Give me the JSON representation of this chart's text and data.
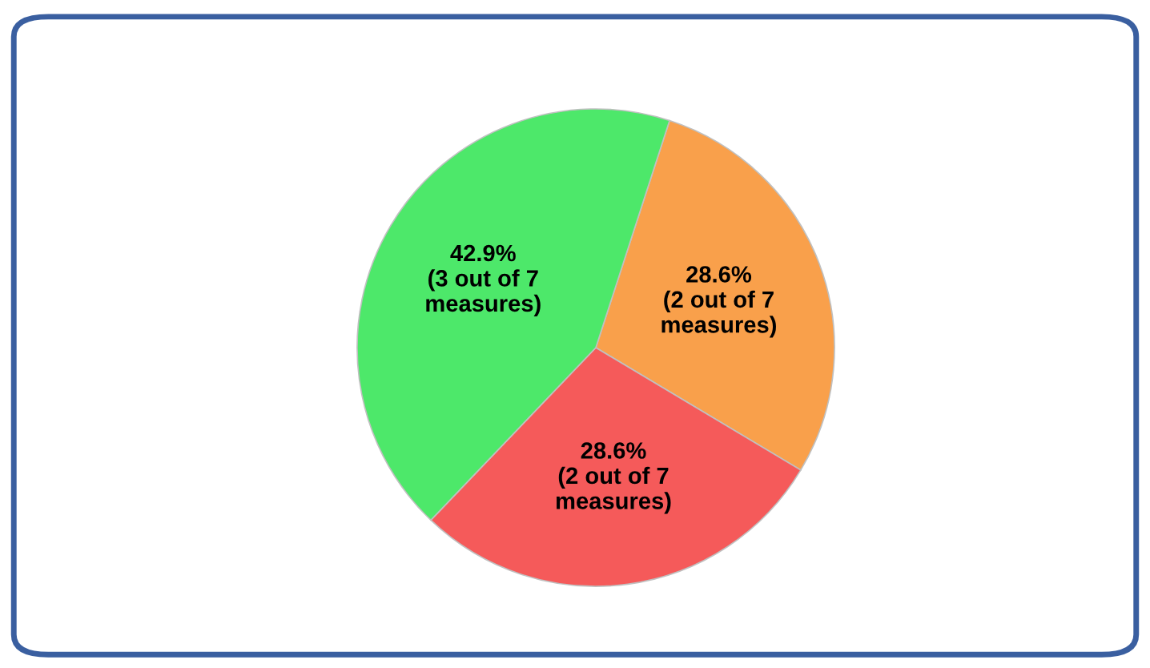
{
  "chart_data": {
    "type": "pie",
    "categories": [
      null,
      null,
      null
    ],
    "values": [
      28.6,
      28.6,
      42.9
    ],
    "colors": [
      "#f9a04b",
      "#f55a5a",
      "#4de86a"
    ],
    "value_labels": [
      "28.6%\n(2 out of 7\nmeasures)",
      "28.6%\n(2 out of 7\nmeasures)",
      "42.9%\n(3 out of 7\nmeasures)"
    ]
  }
}
